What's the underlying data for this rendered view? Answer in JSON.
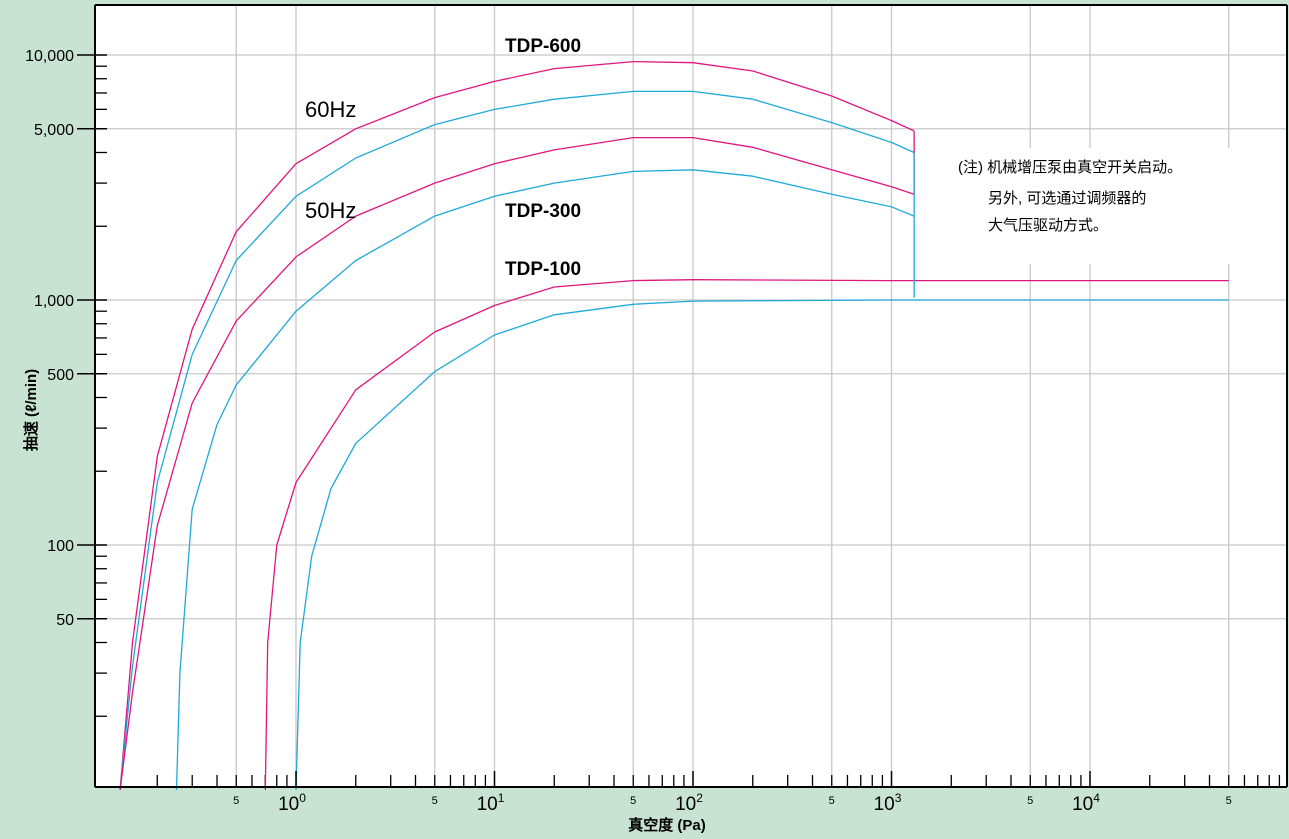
{
  "chart_data": {
    "type": "line",
    "title": "",
    "xlabel": "真空度 (Pa)",
    "ylabel": "抽速 (ℓ/min)",
    "x_scale": "log",
    "y_scale": "log",
    "xlim": [
      0.1,
      50000
    ],
    "ylim": [
      10,
      20000
    ],
    "grid": true,
    "colors": {
      "60Hz": "#e0157f",
      "50Hz": "#1eaad8",
      "frame": "#000000",
      "grid": "#c8c8c8",
      "panel": "#c9e3d3"
    },
    "y_ticks": [
      {
        "value": 10000,
        "label": "10,000"
      },
      {
        "value": 5000,
        "label": "5,000"
      },
      {
        "value": 1000,
        "label": "1,000"
      },
      {
        "value": 500,
        "label": "500"
      },
      {
        "value": 100,
        "label": "100"
      },
      {
        "value": 50,
        "label": "50"
      }
    ],
    "x_ticks": [
      {
        "value": 0.5,
        "base": "5",
        "exp": ""
      },
      {
        "value": 1,
        "base": "10",
        "exp": "0"
      },
      {
        "value": 5,
        "base": "5",
        "exp": ""
      },
      {
        "value": 10,
        "base": "10",
        "exp": "1"
      },
      {
        "value": 50,
        "base": "5",
        "exp": ""
      },
      {
        "value": 100,
        "base": "10",
        "exp": "2"
      },
      {
        "value": 500,
        "base": "5",
        "exp": ""
      },
      {
        "value": 1000,
        "base": "10",
        "exp": "3"
      },
      {
        "value": 5000,
        "base": "5",
        "exp": ""
      },
      {
        "value": 10000,
        "base": "10",
        "exp": "4"
      },
      {
        "value": 50000,
        "base": "5",
        "exp": ""
      }
    ],
    "labels": {
      "tdp600": "TDP-600",
      "tdp300": "TDP-300",
      "tdp100": "TDP-100",
      "hz60": "60Hz",
      "hz50": "50Hz"
    },
    "note": [
      "(注) 机械增压泵由真空开关启动。",
      "另外, 可选通过调频器的",
      "大气压驱动方式。"
    ],
    "series": [
      {
        "label": "TDP-600",
        "freq": "60Hz",
        "x": [
          0.13,
          0.15,
          0.2,
          0.3,
          0.5,
          1,
          2,
          5,
          10,
          20,
          50,
          100,
          200,
          500,
          1000,
          1300
        ],
        "y": [
          10,
          40,
          230,
          760,
          1900,
          3600,
          5000,
          6700,
          7800,
          8800,
          9400,
          9300,
          8600,
          6800,
          5400,
          4900
        ]
      },
      {
        "label": "TDP-600",
        "freq": "50Hz",
        "x": [
          0.13,
          0.15,
          0.2,
          0.3,
          0.5,
          1,
          2,
          5,
          10,
          20,
          50,
          100,
          200,
          500,
          1000,
          1300
        ],
        "y": [
          10,
          32,
          180,
          600,
          1450,
          2650,
          3800,
          5200,
          6000,
          6600,
          7100,
          7100,
          6600,
          5300,
          4400,
          4000
        ]
      },
      {
        "label": "TDP-300",
        "freq": "60Hz",
        "x": [
          0.13,
          0.15,
          0.2,
          0.3,
          0.5,
          1,
          2,
          5,
          10,
          20,
          50,
          100,
          200,
          500,
          1000,
          1300
        ],
        "y": [
          10,
          25,
          120,
          380,
          820,
          1500,
          2200,
          3000,
          3600,
          4100,
          4600,
          4600,
          4200,
          3400,
          2900,
          2700
        ]
      },
      {
        "label": "TDP-300",
        "freq": "50Hz",
        "x": [
          0.25,
          0.26,
          0.3,
          0.4,
          0.5,
          1,
          2,
          5,
          10,
          20,
          50,
          100,
          200,
          500,
          1000,
          1300
        ],
        "y": [
          10,
          30,
          140,
          310,
          450,
          900,
          1450,
          2200,
          2650,
          3000,
          3350,
          3400,
          3200,
          2700,
          2400,
          2200
        ]
      },
      {
        "label": "TDP-100",
        "freq": "60Hz",
        "x": [
          0.7,
          0.72,
          0.8,
          1,
          2,
          5,
          10,
          20,
          50,
          100,
          1000,
          10000,
          50000
        ],
        "y": [
          10,
          40,
          100,
          180,
          430,
          740,
          950,
          1130,
          1200,
          1210,
          1200,
          1200,
          1200
        ]
      },
      {
        "label": "TDP-100",
        "freq": "50Hz",
        "x": [
          1,
          1.05,
          1.2,
          1.5,
          2,
          5,
          10,
          20,
          50,
          100,
          1000,
          10000,
          50000
        ],
        "y": [
          10,
          40,
          90,
          170,
          260,
          510,
          720,
          870,
          960,
          990,
          1000,
          1000,
          1000
        ]
      }
    ]
  }
}
